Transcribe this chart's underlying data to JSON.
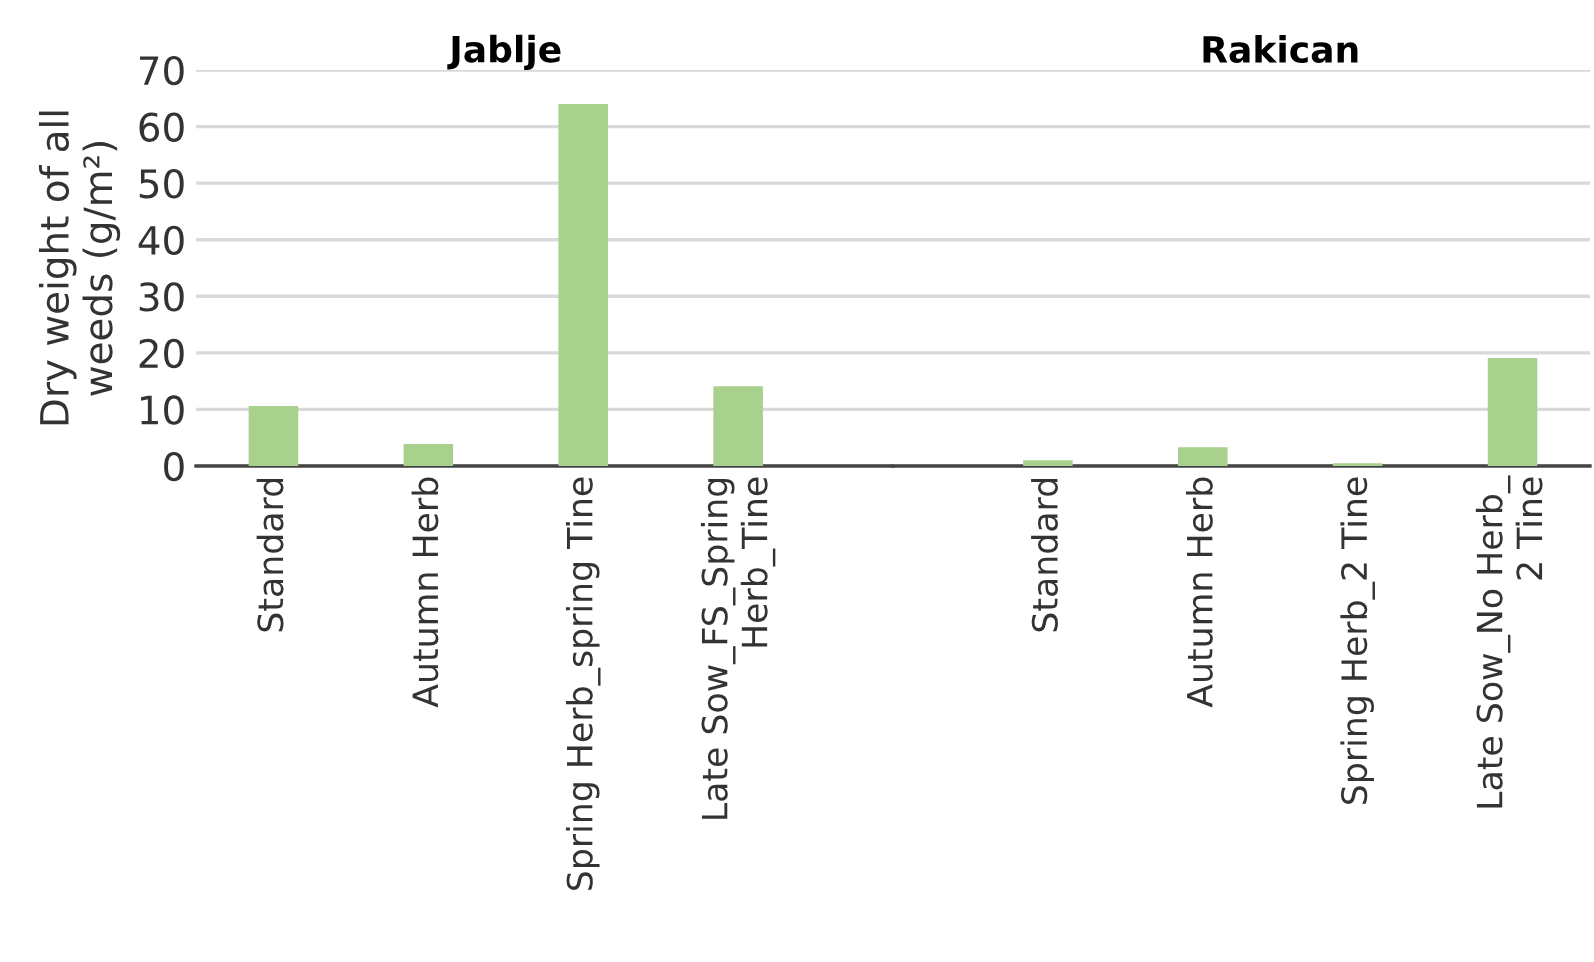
{
  "chart_data": [
    {
      "type": "bar",
      "title": "Jablje",
      "ylabel": "Dry weight of all\nweeds (g/m²)",
      "categories": [
        "Standard",
        "Autumn Herb",
        "Spring Herb_spring Tine",
        "Late Sow_FS_Spring\nHerb_Tine"
      ],
      "values": [
        10.6,
        3.9,
        64,
        14.1
      ],
      "color": "#a9d18e",
      "ylim": [
        0,
        70
      ],
      "yticks": [
        0,
        10,
        20,
        30,
        40,
        50,
        60,
        70
      ],
      "grid": "y"
    },
    {
      "type": "bar",
      "title": "Rakican",
      "categories": [
        "Standard",
        "Autumn Herb",
        "Spring Herb_2 Tine",
        "Late Sow_No Herb_\n2 Tine"
      ],
      "values": [
        1.0,
        3.3,
        0.5,
        19.1
      ],
      "color": "#a9d18e",
      "ylim": [
        0,
        70
      ],
      "yticks": [
        0,
        10,
        20,
        30,
        40,
        50,
        60,
        70
      ],
      "grid": "y",
      "tick_labels": "x"
    }
  ]
}
